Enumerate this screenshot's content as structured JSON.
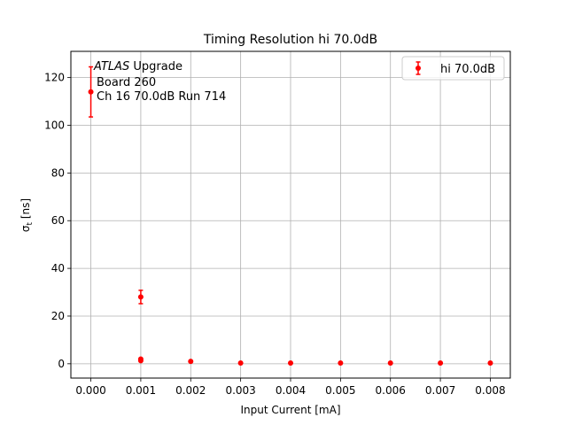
{
  "chart_data": {
    "type": "scatter",
    "title": "Timing Resolution hi 70.0dB",
    "xlabel": "Input Current [mA]",
    "ylabel_main": "σ",
    "ylabel_sub": "t",
    "ylabel_unit": " [ns]",
    "xlim": [
      -0.0004,
      0.0084
    ],
    "ylim": [
      -6,
      131
    ],
    "xticks": [
      0.0,
      0.001,
      0.002,
      0.003,
      0.004,
      0.005,
      0.006,
      0.007,
      0.008
    ],
    "xtick_labels": [
      "0.000",
      "0.001",
      "0.002",
      "0.003",
      "0.004",
      "0.005",
      "0.006",
      "0.007",
      "0.008"
    ],
    "yticks": [
      0,
      20,
      40,
      60,
      80,
      100,
      120
    ],
    "ytick_labels": [
      "0",
      "20",
      "40",
      "60",
      "80",
      "100",
      "120"
    ],
    "grid": true,
    "legend": {
      "placement": "top-right",
      "entries": [
        "hi 70.0dB"
      ]
    },
    "annotation": {
      "line1_italic": "ATLAS",
      "line1_rest": " Upgrade",
      "line2": "Board 260",
      "line3": "Ch 16 70.0dB  Run 714"
    },
    "series": [
      {
        "name": "hi 70.0dB",
        "color": "#ff0000",
        "points": [
          {
            "x": 0.0,
            "y": 114.0,
            "err": 10.5
          },
          {
            "x": 0.001,
            "y": 28.0,
            "err": 2.8
          },
          {
            "x": 0.001,
            "y": 2.0,
            "err": 0.3
          },
          {
            "x": 0.001,
            "y": 1.3,
            "err": 0.2
          },
          {
            "x": 0.002,
            "y": 1.0,
            "err": 0.1
          },
          {
            "x": 0.003,
            "y": 0.3,
            "err": 0.05
          },
          {
            "x": 0.004,
            "y": 0.3,
            "err": 0.05
          },
          {
            "x": 0.005,
            "y": 0.3,
            "err": 0.05
          },
          {
            "x": 0.006,
            "y": 0.3,
            "err": 0.05
          },
          {
            "x": 0.007,
            "y": 0.3,
            "err": 0.05
          },
          {
            "x": 0.008,
            "y": 0.3,
            "err": 0.05
          }
        ]
      }
    ]
  }
}
